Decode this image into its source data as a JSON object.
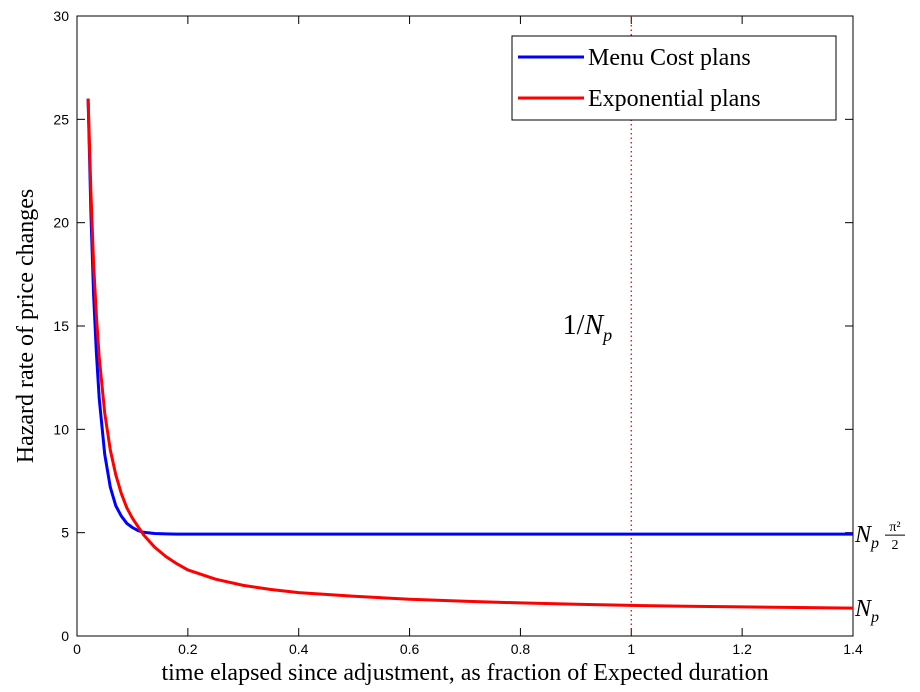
{
  "chart_data": {
    "type": "line",
    "title": "",
    "xlabel": "time elapsed since adjustment, as fraction of Expected duration",
    "ylabel": "Hazard rate of price changes",
    "xlim": [
      0,
      1.4
    ],
    "ylim": [
      0,
      30
    ],
    "x_ticks": [
      0,
      0.2,
      0.4,
      0.6,
      0.8,
      1,
      1.2,
      1.4
    ],
    "x_tick_labels": [
      "0",
      "0.2",
      "0.4",
      "0.6",
      "0.8",
      "1",
      "1.2",
      "1.4"
    ],
    "y_ticks": [
      0,
      5,
      10,
      15,
      20,
      25,
      30
    ],
    "y_tick_labels": [
      "0",
      "5",
      "10",
      "15",
      "20",
      "25",
      "30"
    ],
    "grid": false,
    "legend_position": "top-right",
    "series": [
      {
        "name": "Menu Cost plans",
        "color": "#0000ff",
        "x": [
          0.02,
          0.025,
          0.03,
          0.035,
          0.04,
          0.05,
          0.06,
          0.07,
          0.08,
          0.09,
          0.1,
          0.11,
          0.12,
          0.14,
          0.16,
          0.18,
          0.2,
          0.25,
          0.3,
          0.4,
          0.6,
          0.8,
          1.0,
          1.2,
          1.4
        ],
        "y": [
          26,
          20.5,
          16.5,
          13.7,
          11.5,
          8.8,
          7.2,
          6.3,
          5.8,
          5.45,
          5.25,
          5.1,
          5.02,
          4.96,
          4.94,
          4.93,
          4.93,
          4.93,
          4.93,
          4.93,
          4.93,
          4.93,
          4.93,
          4.93,
          4.93
        ]
      },
      {
        "name": "Exponential plans",
        "color": "#ff0000",
        "x": [
          0.02,
          0.025,
          0.03,
          0.035,
          0.04,
          0.05,
          0.06,
          0.07,
          0.08,
          0.09,
          0.1,
          0.11,
          0.12,
          0.14,
          0.16,
          0.18,
          0.2,
          0.25,
          0.3,
          0.35,
          0.4,
          0.5,
          0.6,
          0.7,
          0.8,
          0.9,
          1.0,
          1.1,
          1.2,
          1.3,
          1.4
        ],
        "y": [
          26,
          21.5,
          18,
          15.5,
          13.5,
          10.8,
          9.0,
          7.8,
          6.9,
          6.2,
          5.7,
          5.3,
          4.9,
          4.3,
          3.85,
          3.5,
          3.2,
          2.75,
          2.45,
          2.25,
          2.1,
          1.92,
          1.78,
          1.68,
          1.6,
          1.54,
          1.48,
          1.44,
          1.41,
          1.38,
          1.35
        ]
      }
    ],
    "vline": {
      "x": 1.0,
      "color": "#ff0000",
      "style": "dotted"
    },
    "annotations": {
      "inv_np": {
        "text": "1/N",
        "sub": "p",
        "x": 0.97,
        "y": 15
      },
      "np_pi": {
        "text": "N",
        "sub": "p",
        "frac_num": "π²",
        "frac_den": "2",
        "y": 4.93
      },
      "np": {
        "text": "N",
        "sub": "p",
        "y": 1.35
      }
    }
  }
}
